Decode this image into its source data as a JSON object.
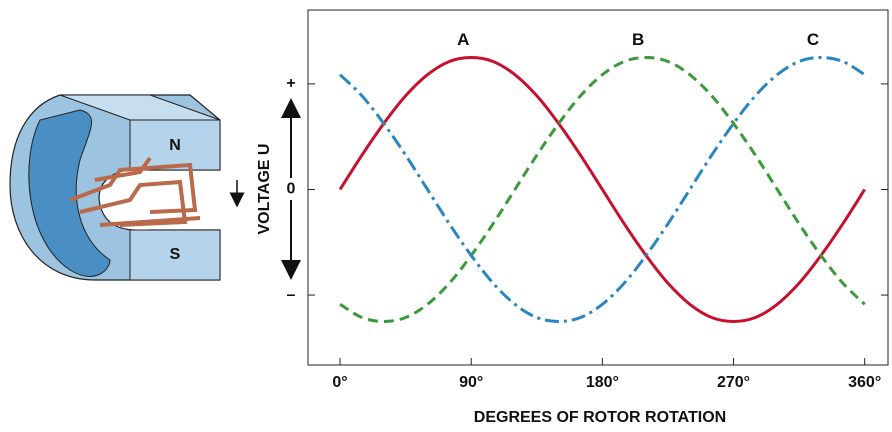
{
  "chart_data": {
    "type": "line",
    "x_label": "DEGREES OF ROTOR ROTATION",
    "y_label": "VOLTAGE U",
    "x": [
      0,
      15,
      30,
      45,
      60,
      75,
      90,
      105,
      120,
      135,
      150,
      165,
      180,
      195,
      210,
      225,
      240,
      255,
      270,
      285,
      300,
      315,
      330,
      345,
      360
    ],
    "series": [
      {
        "name": "A",
        "color": "#c8102e",
        "values": [
          0,
          0.26,
          0.5,
          0.71,
          0.87,
          0.97,
          1,
          0.97,
          0.87,
          0.71,
          0.5,
          0.26,
          0,
          -0.26,
          -0.5,
          -0.71,
          -0.87,
          -0.97,
          -1,
          -0.97,
          -0.87,
          -0.71,
          -0.5,
          -0.26,
          0
        ]
      },
      {
        "name": "B",
        "color": "#3a9a3a",
        "values": [
          -0.87,
          -0.97,
          -1,
          -0.97,
          -0.87,
          -0.71,
          -0.5,
          -0.26,
          0,
          0.26,
          0.5,
          0.71,
          0.87,
          0.97,
          1,
          0.97,
          0.87,
          0.71,
          0.5,
          0.26,
          0,
          -0.26,
          -0.5,
          -0.71,
          -0.87
        ]
      },
      {
        "name": "C",
        "color": "#2a86c0",
        "values": [
          0.87,
          0.71,
          0.5,
          0.26,
          0,
          -0.26,
          -0.5,
          -0.71,
          -0.87,
          -0.97,
          -1,
          -0.97,
          -0.87,
          -0.71,
          -0.5,
          -0.26,
          0,
          0.26,
          0.5,
          0.71,
          0.87,
          0.97,
          1,
          0.97,
          0.87
        ]
      }
    ],
    "xlim": [
      -22,
      376
    ],
    "ylim": [
      -1.33,
      1.36
    ],
    "xticks": [
      {
        "value": 0,
        "label": "0°"
      },
      {
        "value": 90,
        "label": "90°"
      },
      {
        "value": 180,
        "label": "180°"
      },
      {
        "value": 270,
        "label": "270°"
      },
      {
        "value": 360,
        "label": "360°"
      }
    ],
    "yticks": [
      {
        "value": 0.8,
        "label": "+"
      },
      0,
      {
        "value": -0.8,
        "label": "–"
      }
    ]
  },
  "diagram": {
    "north": "N",
    "south": "S"
  }
}
